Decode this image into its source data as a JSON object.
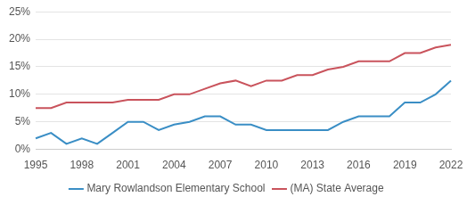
{
  "chart_data": {
    "type": "line",
    "categories": [
      1995,
      null,
      null,
      1998,
      null,
      null,
      2001,
      null,
      null,
      2004,
      null,
      null,
      2007,
      null,
      null,
      2010,
      null,
      null,
      2013,
      null,
      null,
      2016,
      null,
      null,
      2019,
      null,
      null,
      2022
    ],
    "series": [
      {
        "name": "Mary Rowlandson Elementary School",
        "color": "#3a8ec5",
        "values": [
          2,
          3,
          1,
          2,
          1,
          3,
          5,
          5,
          3.5,
          4.5,
          5,
          6,
          6,
          4.5,
          4.5,
          3.5,
          3.5,
          3.5,
          3.5,
          3.5,
          5,
          6,
          6,
          6,
          8.5,
          8.5,
          10,
          12.5
        ]
      },
      {
        "name": "(MA) State Average",
        "color": "#c9535c",
        "values": [
          7.5,
          7.5,
          8.5,
          8.5,
          8.5,
          8.5,
          9,
          9,
          9,
          10,
          10,
          11,
          12,
          12.5,
          11.5,
          12.5,
          12.5,
          13.5,
          13.5,
          14.5,
          15,
          16,
          16,
          16,
          17.5,
          17.5,
          18.5,
          19
        ]
      }
    ],
    "ylim": [
      0,
      25
    ],
    "yticks": [
      {
        "value": 0,
        "label": "0%"
      },
      {
        "value": 5,
        "label": "5%"
      },
      {
        "value": 10,
        "label": "10%"
      },
      {
        "value": 15,
        "label": "15%"
      },
      {
        "value": 20,
        "label": "20%"
      },
      {
        "value": 25,
        "label": "25%"
      }
    ],
    "grid": true,
    "legend": "bottom"
  }
}
